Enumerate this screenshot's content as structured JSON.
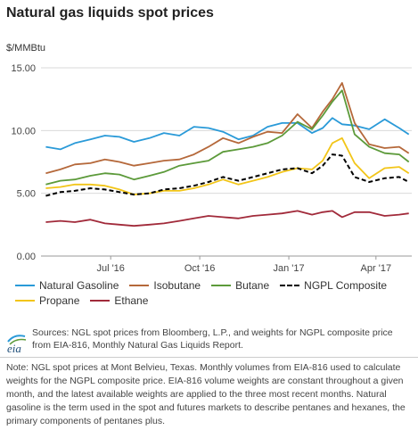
{
  "title": "Natural gas liquids spot prices",
  "y_unit": "$/MMBtu",
  "colors": {
    "natural_gasoline": "#2a9ad8",
    "isobutane": "#b5683a",
    "butane": "#5c9a3a",
    "ngpl_composite": "#000000",
    "propane": "#f2c518",
    "ethane": "#a12a3a",
    "grid": "#d9d9d9"
  },
  "chart_data": {
    "type": "line",
    "title": "Natural gas liquids spot prices",
    "ylabel": "$/MMBtu",
    "xlabel": "",
    "ylim": [
      0,
      15
    ],
    "yticks": [
      "15.00",
      "10.00",
      "5.00",
      "0.00"
    ],
    "xticks": [
      "Jul '16",
      "Oct '16",
      "Jan '17",
      "Apr '17"
    ],
    "grid": true,
    "legend_position": "bottom",
    "x": [
      "2016-04-25",
      "2016-05-10",
      "2016-05-25",
      "2016-06-10",
      "2016-06-25",
      "2016-07-10",
      "2016-07-25",
      "2016-08-10",
      "2016-08-25",
      "2016-09-10",
      "2016-09-25",
      "2016-10-10",
      "2016-10-25",
      "2016-11-10",
      "2016-11-25",
      "2016-12-10",
      "2016-12-25",
      "2017-01-10",
      "2017-01-25",
      "2017-02-05",
      "2017-02-15",
      "2017-02-25",
      "2017-03-10",
      "2017-03-25",
      "2017-04-10",
      "2017-04-25",
      "2017-05-05"
    ],
    "series": [
      {
        "name": "Natural Gasoline",
        "values": [
          8.7,
          8.5,
          9.0,
          9.3,
          9.6,
          9.5,
          9.1,
          9.4,
          9.8,
          9.6,
          10.3,
          10.2,
          9.9,
          9.3,
          9.6,
          10.3,
          10.6,
          10.6,
          9.8,
          10.2,
          11.0,
          10.5,
          10.4,
          10.1,
          10.9,
          10.2,
          9.7
        ]
      },
      {
        "name": "Isobutane",
        "values": [
          6.6,
          6.9,
          7.3,
          7.4,
          7.7,
          7.5,
          7.2,
          7.4,
          7.6,
          7.7,
          8.1,
          8.7,
          9.4,
          9.0,
          9.5,
          9.9,
          9.8,
          11.3,
          10.2,
          11.5,
          12.5,
          13.8,
          10.6,
          8.9,
          8.6,
          8.7,
          8.2
        ]
      },
      {
        "name": "Butane",
        "values": [
          5.7,
          6.0,
          6.1,
          6.4,
          6.6,
          6.5,
          6.1,
          6.4,
          6.7,
          7.2,
          7.4,
          7.6,
          8.3,
          8.5,
          8.7,
          9.0,
          9.6,
          10.7,
          10.1,
          11.2,
          12.3,
          13.2,
          9.7,
          8.7,
          8.2,
          8.1,
          7.5
        ]
      },
      {
        "name": "NGPL Composite",
        "values": [
          4.8,
          5.1,
          5.2,
          5.4,
          5.3,
          5.1,
          4.9,
          5.0,
          5.3,
          5.4,
          5.6,
          5.9,
          6.3,
          6.0,
          6.3,
          6.6,
          6.9,
          7.0,
          6.6,
          7.2,
          8.1,
          8.0,
          6.3,
          5.9,
          6.2,
          6.3,
          5.9
        ]
      },
      {
        "name": "Propane",
        "values": [
          5.4,
          5.5,
          5.7,
          5.7,
          5.6,
          5.3,
          4.9,
          5.0,
          5.2,
          5.2,
          5.4,
          5.7,
          6.1,
          5.7,
          6.0,
          6.3,
          6.7,
          7.0,
          6.9,
          7.6,
          9.0,
          9.4,
          7.4,
          6.2,
          7.0,
          7.1,
          6.6
        ]
      },
      {
        "name": "Ethane",
        "values": [
          2.7,
          2.8,
          2.7,
          2.9,
          2.6,
          2.5,
          2.4,
          2.5,
          2.6,
          2.8,
          3.0,
          3.2,
          3.1,
          3.0,
          3.2,
          3.3,
          3.4,
          3.6,
          3.3,
          3.5,
          3.6,
          3.1,
          3.5,
          3.5,
          3.2,
          3.3,
          3.4
        ]
      }
    ]
  },
  "source": "Sources: NGL spot prices from Bloomberg, L.P., and weights for NGPL composite price from EIA-816, Monthly Natural Gas Liquids Report.",
  "note": "Note: NGL spot prices at Mont Belvieu, Texas. Monthly volumes from EIA-816 used to calculate weights for the NGPL composite price. EIA-816 volume weights are constant throughout a given month, and the latest available weights are applied to the three most recent months. Natural gasoline is the term used in the spot and futures markets to describe pentanes and hexanes, the primary components of pentanes plus.",
  "logo_text": "eia"
}
